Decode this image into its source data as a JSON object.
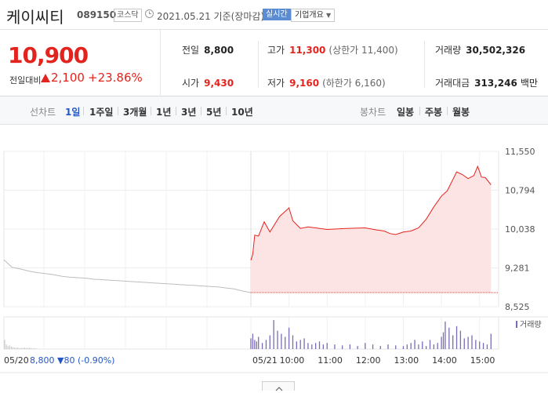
{
  "header": {
    "name": "케이씨티",
    "code": "089150",
    "market": "코스닥",
    "date": "2021.05.21",
    "basis": "기준(장마감)",
    "realtime": "실시간",
    "company_info": "기업개요"
  },
  "price": {
    "current": "10,900",
    "change_label": "전일대비",
    "change": "2,100",
    "change_pct": "+23.86%"
  },
  "stats": {
    "prev_label": "전일",
    "prev": "8,800",
    "high_label": "고가",
    "high": "11,300",
    "upper_limit": "(상한가 11,400)",
    "volume_label": "거래량",
    "volume": "30,502,326",
    "open_label": "시가",
    "open": "9,430",
    "low_label": "저가",
    "low": "9,160",
    "lower_limit": "(하한가 6,160)",
    "amount_label": "거래대금",
    "amount": "313,246",
    "amount_unit": "백만"
  },
  "tabs": {
    "line_label": "선차트",
    "line": [
      "1일",
      "1주일",
      "3개월",
      "1년",
      "3년",
      "5년",
      "10년"
    ],
    "active": "1일",
    "candle_label": "봉차트",
    "candle": [
      "일봉",
      "주봉",
      "월봉"
    ]
  },
  "colors": {
    "up": "#e3241e",
    "down": "#2457c5",
    "accent": "#5b8bd0"
  },
  "chart_data": {
    "type": "line",
    "title": "",
    "xlabel": "",
    "ylabel": "",
    "ylim": [
      8525,
      11550
    ],
    "yticks": [
      "11,550",
      "10,794",
      "10,038",
      "9,281",
      "8,525"
    ],
    "xticks": [
      "05/21",
      "10:00",
      "11:00",
      "12:00",
      "13:00",
      "14:00",
      "15:00"
    ],
    "prev_ticks": [
      "05/20"
    ],
    "legend": "거래량",
    "prev_note": "8,800 ▼80 (-0.90%)",
    "prev_day": [
      9440,
      9290,
      9260,
      9220,
      9190,
      9170,
      9150,
      9120,
      9100,
      9090,
      9080,
      9060,
      9050,
      9040,
      9030,
      9020,
      9010,
      9000,
      8990,
      8980,
      8970,
      8960,
      8950,
      8940,
      8930,
      8920,
      8910,
      8890,
      8870,
      8830,
      8800
    ],
    "today_ref": 8800,
    "today": [
      [
        9.0,
        9430
      ],
      [
        9.05,
        9550
      ],
      [
        9.1,
        9920
      ],
      [
        9.2,
        9900
      ],
      [
        9.35,
        10180
      ],
      [
        9.5,
        9980
      ],
      [
        9.75,
        10280
      ],
      [
        10.0,
        10450
      ],
      [
        10.1,
        10200
      ],
      [
        10.3,
        10050
      ],
      [
        10.5,
        10080
      ],
      [
        11.0,
        10030
      ],
      [
        11.5,
        10050
      ],
      [
        12.0,
        10060
      ],
      [
        12.3,
        10020
      ],
      [
        12.5,
        10000
      ],
      [
        12.65,
        9950
      ],
      [
        12.8,
        9930
      ],
      [
        13.0,
        9980
      ],
      [
        13.2,
        10000
      ],
      [
        13.4,
        10060
      ],
      [
        13.6,
        10230
      ],
      [
        13.8,
        10470
      ],
      [
        14.0,
        10680
      ],
      [
        14.15,
        10780
      ],
      [
        14.4,
        11150
      ],
      [
        14.55,
        11100
      ],
      [
        14.7,
        11020
      ],
      [
        14.85,
        11080
      ],
      [
        14.95,
        11260
      ],
      [
        15.05,
        11050
      ],
      [
        15.15,
        11040
      ],
      [
        15.3,
        10900
      ]
    ],
    "volume_x": [
      9.0,
      9.05,
      9.1,
      9.15,
      9.2,
      9.3,
      9.4,
      9.5,
      9.6,
      9.7,
      9.8,
      9.9,
      10.0,
      10.1,
      10.2,
      10.3,
      10.4,
      10.5,
      10.6,
      10.7,
      10.8,
      10.9,
      11.0,
      11.2,
      11.4,
      11.6,
      11.8,
      12.0,
      12.2,
      12.4,
      12.6,
      12.8,
      13.0,
      13.1,
      13.2,
      13.3,
      13.4,
      13.5,
      13.6,
      13.7,
      13.8,
      13.9,
      14.0,
      14.05,
      14.1,
      14.2,
      14.3,
      14.4,
      14.5,
      14.6,
      14.7,
      14.8,
      14.9,
      15.0,
      15.1,
      15.2,
      15.3
    ],
    "volume": [
      0.35,
      0.5,
      0.3,
      0.25,
      0.4,
      0.2,
      0.3,
      0.45,
      0.95,
      0.6,
      0.5,
      0.4,
      0.7,
      0.45,
      0.25,
      0.3,
      0.35,
      0.2,
      0.15,
      0.2,
      0.25,
      0.15,
      0.2,
      0.15,
      0.12,
      0.15,
      0.1,
      0.2,
      0.15,
      0.1,
      0.15,
      0.12,
      0.1,
      0.15,
      0.2,
      0.3,
      0.15,
      0.25,
      0.1,
      0.3,
      0.15,
      0.2,
      0.4,
      0.55,
      0.9,
      0.7,
      0.45,
      0.75,
      0.6,
      0.35,
      0.4,
      0.45,
      0.3,
      0.25,
      0.2,
      0.15,
      0.5
    ],
    "prev_volume": [
      0.3,
      0.15,
      0.1,
      0.12,
      0.08,
      0.06,
      0.05,
      0.04,
      0.05,
      0.03,
      0.04,
      0.03,
      0.05,
      0.04,
      0.03,
      0.04,
      0.03,
      0.02,
      0.03,
      0.02
    ]
  }
}
